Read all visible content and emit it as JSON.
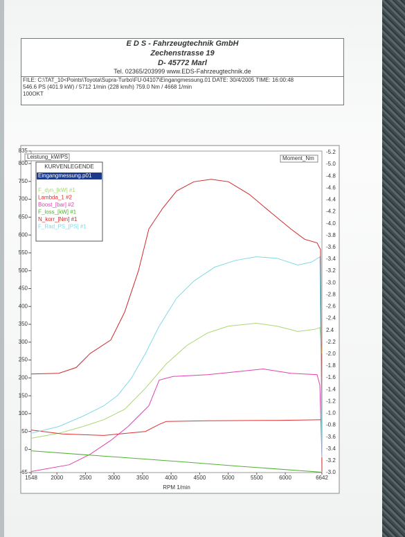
{
  "header": {
    "company": "E D S - Fahrzeugtechnik GmbH",
    "street": "Zechenstrasse 19",
    "city": "D- 45772 Marl",
    "contact": "Tel. 02365/203999   www.EDS-Fahrzeugtechnik.de",
    "file": "FILE: C:\\TAT_10<Points\\Toyota\\Supra-Turbo\\FU-04107\\Eingangmessung.01  DATE: 30/4/2005  TIME: 16:00:48",
    "result": "546.6 PS  (401.9 kW) / 5712 1/min (228 km/h)     759.0 Nm / 4668 1/min",
    "fuel": "100OKT"
  },
  "chart_data": {
    "type": "line",
    "y_label": "Leistung_kW/PS",
    "y2_label": "Moment_Nm",
    "x_label": "RPM 1/min",
    "legend_title": "KURVENLEGENDE",
    "legend_file": "Eingangmessung.p01",
    "xlim": [
      1548,
      6642
    ],
    "xticks": [
      1548,
      2000,
      2500,
      3000,
      3500,
      4000,
      4500,
      5000,
      5500,
      6000,
      6642
    ],
    "ylim": [
      -65,
      835
    ],
    "yticks": [
      835,
      800,
      750,
      700,
      650,
      600,
      550,
      500,
      450,
      400,
      350,
      300,
      250,
      200,
      150,
      100,
      50,
      0,
      -65
    ],
    "y2_labels": [
      "-5.2",
      "-5.0",
      "-4.8",
      "-4.6",
      "-4.4",
      "-4.2",
      "-4.0",
      "-3.8",
      "-3.6",
      "-3.4",
      "-3.2",
      "-3.0",
      "-2.8",
      "-2.6",
      "-2.4",
      "2.4",
      "-2.2",
      "-2.0",
      "-1.8",
      "-1.6",
      "-1.4",
      "-1.2",
      "-1.0",
      "-0.8",
      "-3.6",
      "-3.4",
      "-3.2",
      "-3.0"
    ],
    "series": [
      {
        "name": "F_dyn_[kW] #1",
        "color": "#a8d870",
        "x": [
          1548,
          2033,
          2458,
          2822,
          3185,
          3549,
          3913,
          4277,
          4641,
          5005,
          5490,
          5853,
          6217,
          6521,
          6606,
          6642
        ],
        "values": [
          31,
          45,
          64,
          83,
          112,
          171,
          239,
          291,
          326,
          345,
          353,
          345,
          330,
          336,
          341,
          268
        ]
      },
      {
        "name": "Lambda_1 #2",
        "color": "#e03030",
        "x": [
          1548,
          2094,
          2822,
          3549,
          3792,
          3913,
          4641,
          5853,
          6642
        ],
        "values": [
          54,
          43,
          39,
          50,
          70,
          78,
          80,
          81,
          83
        ]
      },
      {
        "name": "Boost_[bar] #2",
        "color": "#e040b0",
        "x": [
          1548,
          2215,
          2579,
          2943,
          3246,
          3428,
          3610,
          3792,
          4035,
          4641,
          5247,
          5611,
          6096,
          6557,
          6606,
          6642
        ],
        "values": [
          -62,
          -43,
          -14,
          25,
          64,
          93,
          122,
          194,
          204,
          209,
          219,
          225,
          213,
          209,
          180,
          -23
        ]
      },
      {
        "name": "F_loss_[kW] #1",
        "color": "#50b030",
        "x": [
          1548,
          2822,
          4035,
          5247,
          6642
        ],
        "values": [
          -4,
          -19,
          -33,
          -48,
          -64
        ]
      },
      {
        "name": "N_korr_[Nm] #1",
        "color": "#d02828",
        "x": [
          1548,
          2033,
          2336,
          2579,
          2943,
          3185,
          3428,
          3610,
          3852,
          4095,
          4398,
          4701,
          5005,
          5368,
          5732,
          6096,
          6339,
          6557,
          6618,
          6642
        ],
        "values": [
          211,
          213,
          229,
          268,
          306,
          384,
          500,
          617,
          675,
          723,
          749,
          756,
          749,
          714,
          665,
          617,
          588,
          578,
          559,
          -62
        ]
      },
      {
        "name": "F_Rad_PS_[PS] #1",
        "color": "#80d8e8",
        "x": [
          1548,
          2033,
          2458,
          2822,
          3064,
          3307,
          3549,
          3792,
          4095,
          4398,
          4762,
          5126,
          5490,
          5853,
          6217,
          6460,
          6606,
          6642
        ],
        "values": [
          45,
          64,
          93,
          122,
          151,
          200,
          268,
          345,
          423,
          471,
          510,
          529,
          539,
          535,
          516,
          524,
          539,
          -23
        ]
      }
    ]
  }
}
